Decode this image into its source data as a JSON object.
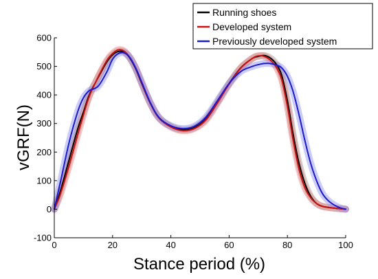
{
  "chart_data": {
    "type": "line",
    "title": "",
    "xlabel": "Stance period (%)",
    "ylabel": "vGRF(N)",
    "xlim": [
      0,
      100
    ],
    "ylim": [
      -100,
      600
    ],
    "xticks": [
      0,
      20,
      40,
      60,
      80,
      100
    ],
    "yticks": [
      -100,
      0,
      100,
      200,
      300,
      400,
      500,
      600
    ],
    "grid": false,
    "legend_position": "top-right",
    "shaded_bands": true,
    "series": [
      {
        "name": "Running shoes",
        "color": "#000000",
        "band_color": "#9a9a9a",
        "x": [
          0,
          2,
          5,
          8,
          10,
          12,
          15,
          18,
          20,
          22,
          24,
          26,
          28,
          30,
          33,
          36,
          40,
          44,
          48,
          52,
          56,
          60,
          64,
          68,
          70,
          72,
          74,
          76,
          78,
          80,
          82,
          84,
          86,
          88,
          90,
          92,
          95,
          100
        ],
        "y": [
          0,
          60,
          170,
          280,
          340,
          400,
          460,
          515,
          540,
          552,
          550,
          528,
          490,
          440,
          370,
          320,
          290,
          278,
          285,
          315,
          375,
          440,
          495,
          528,
          535,
          538,
          530,
          510,
          470,
          380,
          260,
          160,
          90,
          45,
          20,
          10,
          5,
          0
        ]
      },
      {
        "name": "Developed system",
        "color": "#cc1111",
        "band_color": "#ee7777",
        "x": [
          0,
          2,
          5,
          8,
          10,
          12,
          15,
          18,
          20,
          22,
          24,
          26,
          28,
          30,
          33,
          36,
          40,
          44,
          48,
          52,
          56,
          60,
          64,
          68,
          70,
          72,
          74,
          76,
          78,
          80,
          82,
          84,
          86,
          88,
          90,
          92,
          95,
          100
        ],
        "y": [
          0,
          50,
          150,
          260,
          330,
          395,
          462,
          520,
          545,
          558,
          553,
          530,
          492,
          442,
          370,
          318,
          288,
          275,
          282,
          312,
          372,
          438,
          494,
          528,
          537,
          535,
          523,
          500,
          455,
          360,
          240,
          140,
          75,
          40,
          20,
          10,
          5,
          0
        ]
      },
      {
        "name": "Previously developed system",
        "color": "#1a1acc",
        "band_color": "#8f8ff0",
        "x": [
          0,
          2,
          5,
          8,
          10,
          12,
          15,
          18,
          20,
          22,
          24,
          26,
          28,
          30,
          33,
          36,
          40,
          44,
          48,
          52,
          56,
          60,
          64,
          68,
          70,
          72,
          74,
          76,
          78,
          80,
          82,
          84,
          86,
          88,
          90,
          92,
          94,
          96,
          98,
          100
        ],
        "y": [
          0,
          90,
          230,
          340,
          390,
          415,
          430,
          480,
          525,
          545,
          547,
          530,
          493,
          445,
          372,
          320,
          292,
          282,
          290,
          322,
          380,
          440,
          482,
          500,
          506,
          510,
          510,
          505,
          495,
          465,
          410,
          330,
          240,
          160,
          100,
          55,
          30,
          15,
          5,
          0
        ]
      }
    ]
  }
}
